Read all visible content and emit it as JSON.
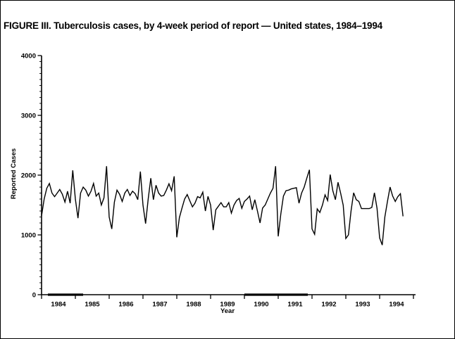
{
  "figure": {
    "title": "FIGURE III. Tuberculosis cases, by 4-week period of report — United states, 1984–1994"
  },
  "chart_data": {
    "type": "line",
    "title": "FIGURE III. Tuberculosis cases, by 4-week period of report — United states, 1984–1994",
    "xlabel": "Year",
    "ylabel": "Reported Cases",
    "ylim": [
      0,
      4000
    ],
    "yticks": [
      0,
      1000,
      2000,
      3000,
      4000
    ],
    "x_tick_labels": [
      "1984",
      "1985",
      "1986",
      "1987",
      "1988",
      "1989",
      "1990",
      "1991",
      "1992",
      "1993",
      "1994"
    ],
    "periods_per_year": 13,
    "start_year": 1984,
    "grid": false,
    "legend": "none",
    "line_color": "#000000",
    "series": [
      {
        "name": "Reported tuberculosis cases per 4-week period",
        "values": [
          1320,
          1600,
          1780,
          1860,
          1700,
          1640,
          1700,
          1760,
          1680,
          1550,
          1730,
          1530,
          2080,
          1600,
          1280,
          1700,
          1800,
          1750,
          1650,
          1730,
          1860,
          1650,
          1700,
          1500,
          1620,
          2150,
          1300,
          1100,
          1550,
          1750,
          1680,
          1560,
          1700,
          1760,
          1660,
          1730,
          1690,
          1590,
          2060,
          1500,
          1190,
          1600,
          1950,
          1590,
          1830,
          1700,
          1650,
          1660,
          1750,
          1855,
          1740,
          1980,
          960,
          1290,
          1450,
          1600,
          1675,
          1570,
          1470,
          1530,
          1640,
          1620,
          1715,
          1400,
          1645,
          1500,
          1080,
          1420,
          1480,
          1540,
          1470,
          1470,
          1540,
          1365,
          1500,
          1575,
          1610,
          1445,
          1560,
          1600,
          1650,
          1420,
          1590,
          1400,
          1200,
          1450,
          1500,
          1600,
          1700,
          1780,
          2150,
          975,
          1350,
          1650,
          1740,
          1750,
          1770,
          1780,
          1790,
          1530,
          1700,
          1800,
          1950,
          2090,
          1100,
          1010,
          1435,
          1375,
          1500,
          1670,
          1575,
          2010,
          1740,
          1590,
          1880,
          1700,
          1495,
          940,
          1000,
          1400,
          1705,
          1590,
          1560,
          1440,
          1440,
          1440,
          1440,
          1460,
          1705,
          1445,
          950,
          830,
          1300,
          1560,
          1800,
          1650,
          1560,
          1640,
          1690,
          1310
        ]
      }
    ]
  }
}
